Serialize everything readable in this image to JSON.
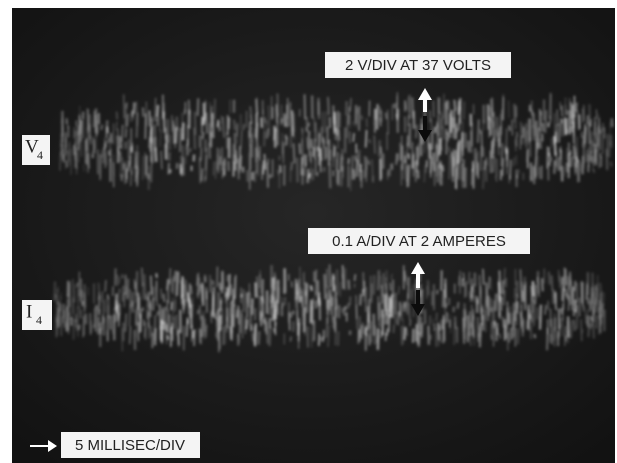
{
  "traces": [
    {
      "symbol": "V",
      "subscript": "4",
      "scale_label": "2 V/DIV AT 37 VOLTS"
    },
    {
      "symbol": "I",
      "subscript": "4",
      "scale_label": "0.1 A/DIV AT 2 AMPERES"
    }
  ],
  "time_scale_label": "5 MILLISEC/DIV"
}
